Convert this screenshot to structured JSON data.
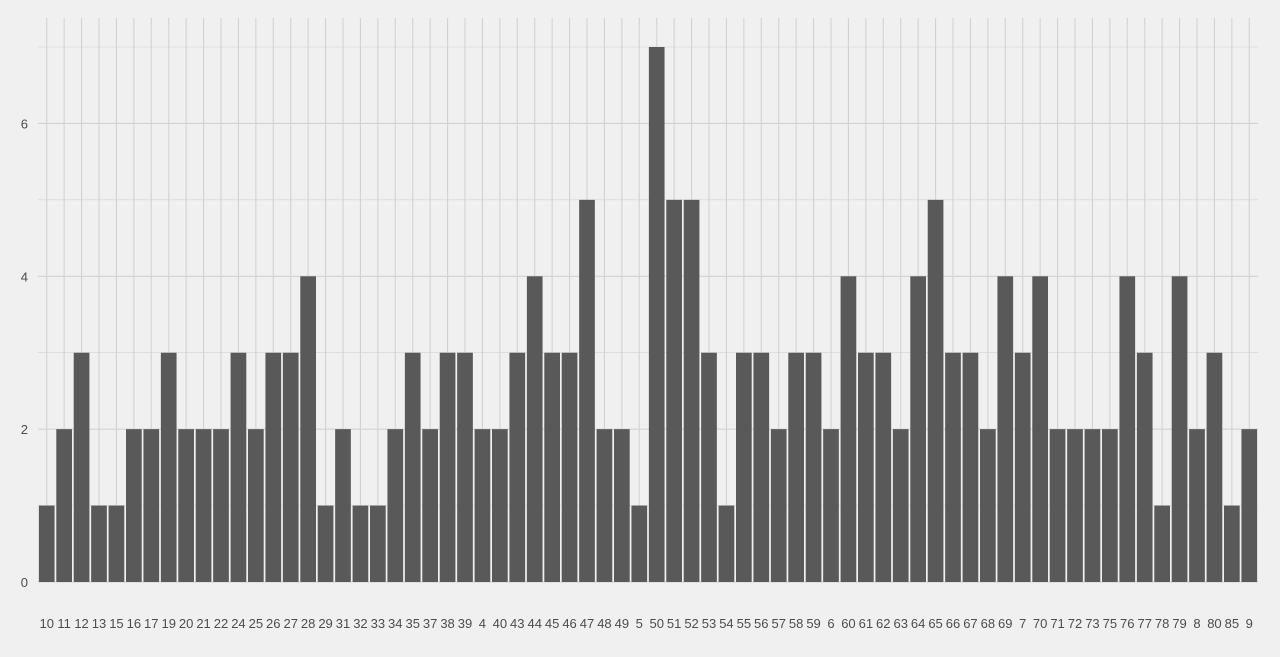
{
  "chart_data": {
    "type": "bar",
    "title": "",
    "xlabel": "",
    "ylabel": "",
    "categories": [
      "10",
      "11",
      "12",
      "13",
      "15",
      "16",
      "17",
      "19",
      "20",
      "21",
      "22",
      "24",
      "25",
      "26",
      "27",
      "28",
      "29",
      "31",
      "32",
      "33",
      "34",
      "35",
      "37",
      "38",
      "39",
      "4",
      "40",
      "43",
      "44",
      "45",
      "46",
      "47",
      "48",
      "49",
      "5",
      "50",
      "51",
      "52",
      "53",
      "54",
      "55",
      "56",
      "57",
      "58",
      "59",
      "6",
      "60",
      "61",
      "62",
      "63",
      "64",
      "65",
      "66",
      "67",
      "68",
      "69",
      "7",
      "70",
      "71",
      "72",
      "73",
      "75",
      "76",
      "77",
      "78",
      "79",
      "8",
      "80",
      "85",
      "9"
    ],
    "values": [
      1,
      2,
      3,
      1,
      1,
      2,
      2,
      3,
      2,
      2,
      2,
      3,
      2,
      3,
      3,
      4,
      1,
      2,
      1,
      1,
      2,
      3,
      2,
      3,
      3,
      2,
      2,
      3,
      4,
      3,
      3,
      5,
      2,
      2,
      1,
      7,
      5,
      5,
      3,
      1,
      3,
      3,
      2,
      3,
      3,
      2,
      4,
      3,
      3,
      2,
      4,
      5,
      3,
      3,
      2,
      4,
      3,
      4,
      2,
      2,
      2,
      2,
      4,
      3,
      1,
      4,
      2,
      3,
      1,
      2
    ],
    "ylim": [
      0,
      7
    ],
    "yticks": [
      0,
      2,
      4,
      6
    ],
    "grid": true,
    "colors": {
      "bar": "#595959",
      "background": "#f0f0f0",
      "grid": "#d2d2d2",
      "text": "#4d4d4d"
    }
  }
}
